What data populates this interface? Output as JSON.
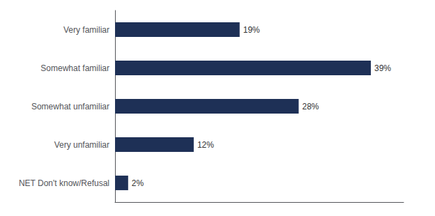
{
  "chart_data": {
    "type": "bar",
    "orientation": "horizontal",
    "categories": [
      "Very familiar",
      "Somewhat familiar",
      "Somewhat unfamiliar",
      "Very unfamiliar",
      "NET Don't know/Refusal"
    ],
    "values": [
      19,
      39,
      28,
      12,
      2
    ],
    "value_labels": [
      "19%",
      "39%",
      "28%",
      "12%",
      "2%"
    ],
    "color": "#1e3056",
    "xlim": [
      0,
      44
    ],
    "data_labels": true,
    "tick_labels": "y",
    "grid": false
  }
}
